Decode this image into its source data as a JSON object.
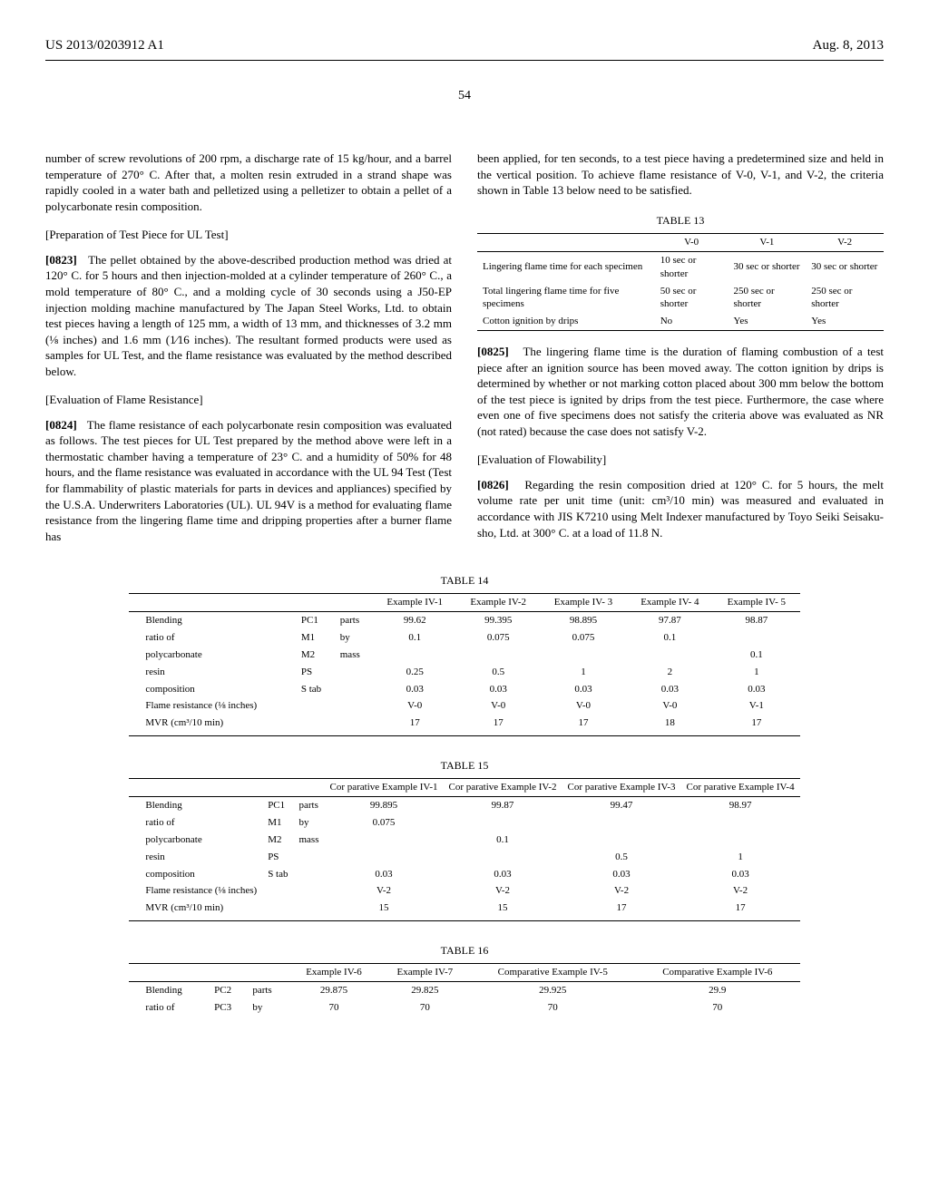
{
  "header": {
    "left": "US 2013/0203912 A1",
    "right": "Aug. 8, 2013"
  },
  "page_number": "54",
  "col1": {
    "p0": "number of screw revolutions of 200 rpm, a discharge rate of 15 kg/hour, and a barrel temperature of 270° C. After that, a molten resin extruded in a strand shape was rapidly cooled in a water bath and pelletized using a pelletizer to obtain a pellet of a polycarbonate resin composition.",
    "h1": "[Preparation of Test Piece for UL Test]",
    "p1_num": "[0823]",
    "p1": "The pellet obtained by the above-described production method was dried at 120° C. for 5 hours and then injection-molded at a cylinder temperature of 260° C., a mold temperature of 80° C., and a molding cycle of 30 seconds using a J50-EP injection molding machine manufactured by The Japan Steel Works, Ltd. to obtain test pieces having a length of 125 mm, a width of 13 mm, and thicknesses of 3.2 mm (⅛ inches) and 1.6 mm (1⁄16 inches). The resultant formed products were used as samples for UL Test, and the flame resistance was evaluated by the method described below.",
    "h2": "[Evaluation of Flame Resistance]",
    "p2_num": "[0824]",
    "p2": "The flame resistance of each polycarbonate resin composition was evaluated as follows. The test pieces for UL Test prepared by the method above were left in a thermostatic chamber having a temperature of 23° C. and a humidity of 50% for 48 hours, and the flame resistance was evaluated in accordance with the UL 94 Test (Test for flammability of plastic materials for parts in devices and appliances) specified by the U.S.A. Underwriters Laboratories (UL). UL 94V is a method for evaluating flame resistance from the lingering flame time and dripping properties after a burner flame has"
  },
  "col2": {
    "p0": "been applied, for ten seconds, to a test piece having a predetermined size and held in the vertical position. To achieve flame resistance of V-0, V-1, and V-2, the criteria shown in Table 13 below need to be satisfied.",
    "p1_num": "[0825]",
    "p1": "The lingering flame time is the duration of flaming combustion of a test piece after an ignition source has been moved away. The cotton ignition by drips is determined by whether or not marking cotton placed about 300 mm below the bottom of the test piece is ignited by drips from the test piece. Furthermore, the case where even one of five specimens does not satisfy the criteria above was evaluated as NR (not rated) because the case does not satisfy V-2.",
    "h1": "[Evaluation of Flowability]",
    "p2_num": "[0826]",
    "p2": "Regarding the resin composition dried at 120° C. for 5 hours, the melt volume rate per unit time (unit: cm³/10 min) was measured and evaluated in accordance with JIS K7210 using Melt Indexer manufactured by Toyo Seiki Seisaku-sho, Ltd. at 300° C. at a load of 11.8 N."
  },
  "table13": {
    "caption": "TABLE 13",
    "cols": [
      "",
      "V-0",
      "V-1",
      "V-2"
    ],
    "rows": [
      [
        "Lingering flame time for each specimen",
        "10 sec or shorter",
        "30 sec or shorter",
        "30 sec or shorter"
      ],
      [
        "Total lingering flame time for five specimens",
        "50 sec or shorter",
        "250 sec or shorter",
        "250 sec or shorter"
      ],
      [
        "Cotton ignition by drips",
        "No",
        "Yes",
        "Yes"
      ]
    ]
  },
  "table14": {
    "caption": "TABLE 14",
    "cols": [
      "",
      "",
      "",
      "Example IV-1",
      "Example IV-2",
      "Example IV- 3",
      "Example IV- 4",
      "Example IV- 5"
    ],
    "rows": [
      [
        "Blending",
        "PC1",
        "parts",
        "99.62",
        "99.395",
        "98.895",
        "97.87",
        "98.87"
      ],
      [
        "ratio of",
        "M1",
        "by",
        "0.1",
        "0.075",
        "0.075",
        "0.1",
        ""
      ],
      [
        "polycarbonate",
        "M2",
        "mass",
        "",
        "",
        "",
        "",
        "0.1"
      ],
      [
        "resin",
        "PS",
        "",
        "0.25",
        "0.5",
        "1",
        "2",
        "1"
      ],
      [
        "composition",
        "S tab",
        "",
        "0.03",
        "0.03",
        "0.03",
        "0.03",
        "0.03"
      ],
      [
        "Flame resistance (⅛ inches)",
        "",
        "",
        "V-0",
        "V-0",
        "V-0",
        "V-0",
        "V-1"
      ],
      [
        "MVR (cm³/10 min)",
        "",
        "",
        "17",
        "17",
        "17",
        "18",
        "17"
      ]
    ]
  },
  "table15": {
    "caption": "TABLE 15",
    "cols": [
      "",
      "",
      "",
      "Cor parative Example IV-1",
      "Cor parative Example IV-2",
      "Cor parative Example IV-3",
      "Cor parative Example IV-4"
    ],
    "rows": [
      [
        "Blending",
        "PC1",
        "parts",
        "99.895",
        "99.87",
        "99.47",
        "98.97"
      ],
      [
        "ratio of",
        "M1",
        "by",
        "0.075",
        "",
        "",
        ""
      ],
      [
        "polycarbonate",
        "M2",
        "mass",
        "",
        "0.1",
        "",
        ""
      ],
      [
        "resin",
        "PS",
        "",
        "",
        "",
        "0.5",
        "1"
      ],
      [
        "composition",
        "S tab",
        "",
        "0.03",
        "0.03",
        "0.03",
        "0.03"
      ],
      [
        "Flame resistance (⅛ inches)",
        "",
        "",
        "V-2",
        "V-2",
        "V-2",
        "V-2"
      ],
      [
        "MVR (cm³/10 min)",
        "",
        "",
        "15",
        "15",
        "17",
        "17"
      ]
    ]
  },
  "table16": {
    "caption": "TABLE 16",
    "cols": [
      "",
      "",
      "",
      "Example IV-6",
      "Example IV-7",
      "Comparative Example IV-5",
      "Comparative Example IV-6"
    ],
    "rows": [
      [
        "Blending",
        "PC2",
        "parts",
        "29.875",
        "29.825",
        "29.925",
        "29.9"
      ],
      [
        "ratio of",
        "PC3",
        "by",
        "70",
        "70",
        "70",
        "70"
      ]
    ]
  }
}
